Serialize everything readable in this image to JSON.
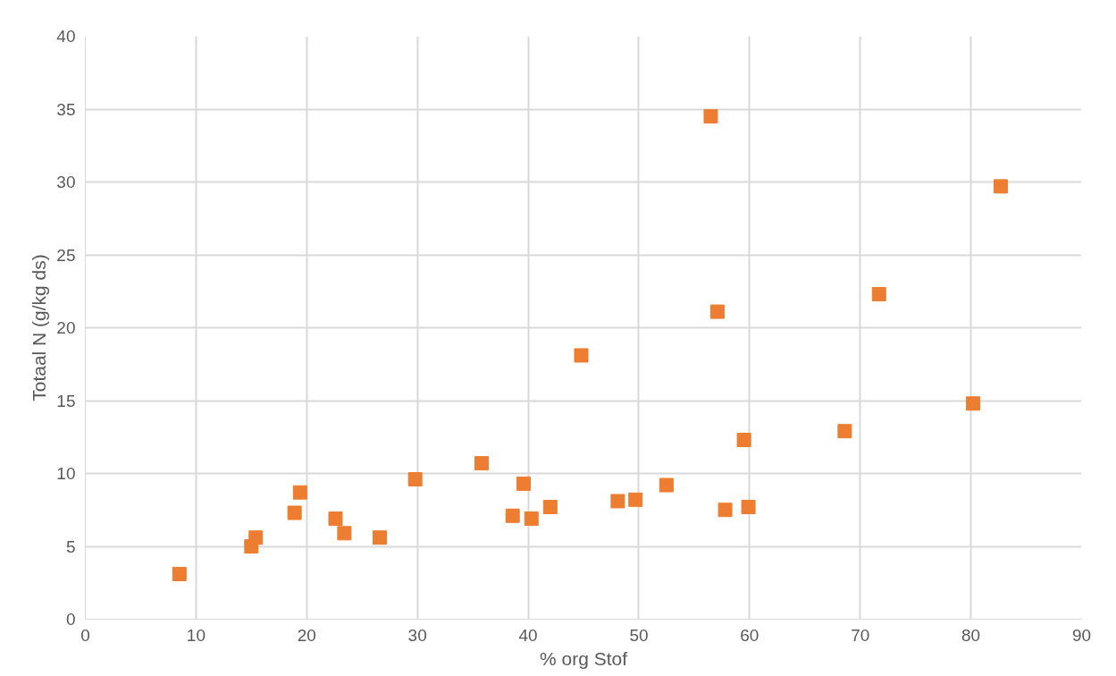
{
  "chart_data": {
    "type": "scatter",
    "xlabel": "% org Stof",
    "ylabel": "Totaal N (g/kg ds)",
    "xlim": [
      0,
      90
    ],
    "xticks": [
      0,
      10,
      20,
      30,
      40,
      50,
      60,
      70,
      80,
      90
    ],
    "ylim": [
      0,
      40
    ],
    "yticks": [
      0,
      5,
      10,
      15,
      20,
      25,
      30,
      35,
      40
    ],
    "grid": true,
    "marker": "square",
    "series": [
      {
        "color": "#ed7d31",
        "x": [
          8.5,
          15.0,
          15.4,
          18.9,
          19.4,
          22.6,
          23.4,
          26.6,
          29.8,
          35.8,
          38.6,
          39.6,
          40.3,
          42.0,
          44.8,
          48.1,
          49.7,
          52.5,
          56.5,
          57.1,
          57.8,
          59.5,
          59.9,
          68.6,
          71.7,
          80.2,
          82.7
        ],
        "values": [
          3.1,
          5.0,
          5.6,
          7.3,
          8.7,
          6.9,
          5.9,
          5.6,
          9.6,
          10.7,
          7.1,
          9.3,
          6.9,
          7.7,
          18.1,
          8.1,
          8.2,
          9.2,
          34.5,
          21.1,
          7.5,
          12.3,
          7.7,
          12.9,
          22.3,
          14.8,
          29.7
        ]
      }
    ]
  }
}
